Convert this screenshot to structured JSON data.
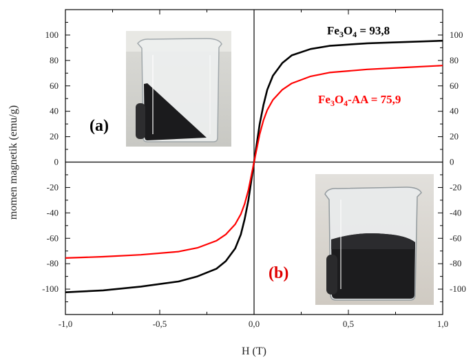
{
  "chart_data": {
    "type": "line",
    "xlabel": "H (T)",
    "ylabel": "momen magnetik (emu/g)",
    "xlim": [
      -1.0,
      1.0
    ],
    "ylim": [
      -120,
      120
    ],
    "x_ticks": [
      "-1,0",
      "-0,5",
      "0,0",
      "0,5",
      "1,0"
    ],
    "y_ticks": [
      "-100",
      "-80",
      "-60",
      "-40",
      "-20",
      "0",
      "20",
      "40",
      "60",
      "80",
      "100"
    ],
    "series": [
      {
        "color": "#000000",
        "x": [
          -1.0,
          -0.8,
          -0.6,
          -0.4,
          -0.3,
          -0.2,
          -0.15,
          -0.1,
          -0.07,
          -0.05,
          -0.03,
          -0.015,
          0.0,
          0.015,
          0.03,
          0.05,
          0.07,
          0.1,
          0.15,
          0.2,
          0.3,
          0.4,
          0.6,
          0.8,
          1.0
        ],
        "y": [
          -102.5,
          -101,
          -98,
          -94,
          -90,
          -84,
          -78,
          -68,
          -57,
          -45,
          -30,
          -15,
          0,
          15,
          30,
          45,
          57,
          68,
          78,
          84,
          89,
          91.5,
          93.5,
          94.5,
          95.5
        ]
      },
      {
        "color": "#ff0000",
        "x": [
          -1.0,
          -0.8,
          -0.6,
          -0.4,
          -0.3,
          -0.2,
          -0.15,
          -0.1,
          -0.07,
          -0.05,
          -0.03,
          -0.015,
          0.0,
          0.015,
          0.03,
          0.05,
          0.07,
          0.1,
          0.15,
          0.2,
          0.3,
          0.4,
          0.6,
          0.8,
          1.0
        ],
        "y": [
          -75.5,
          -74.5,
          -73,
          -70.5,
          -67.5,
          -62,
          -57,
          -49,
          -41,
          -33,
          -22,
          -11,
          0,
          11,
          22,
          33,
          41,
          49,
          57,
          62,
          67.5,
          70.5,
          73,
          74.5,
          76
        ]
      }
    ],
    "annotations": [
      {
        "id": "black",
        "parts": [
          "Fe",
          "3",
          "O",
          "4",
          "  = 93,8"
        ],
        "color": "#000000"
      },
      {
        "id": "red",
        "parts": [
          "Fe",
          "3",
          "O",
          "4",
          "-AA  = 75,9"
        ],
        "color": "#ff0000"
      }
    ],
    "panel_labels": {
      "a": "(a)",
      "b": "(b)"
    }
  }
}
